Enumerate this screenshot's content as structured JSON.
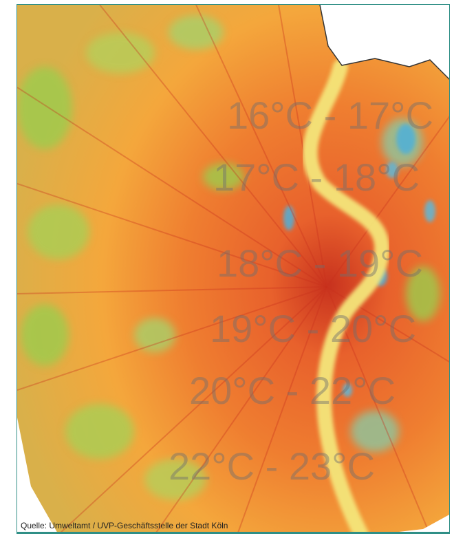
{
  "map": {
    "source": "Quelle: Umweltamt / UVP-Geschäftsstelle der Stadt Köln",
    "zones": [
      {
        "label": "16°C - 17°C"
      },
      {
        "label": "17°C - 18°C"
      },
      {
        "label": "18°C - 19°C"
      },
      {
        "label": "19°C - 20°C"
      },
      {
        "label": "20°C - 22°C"
      },
      {
        "label": "22°C - 23°C"
      }
    ],
    "colors": {
      "cool": "#4fb0d9",
      "mild": "#9ccc4e",
      "warm": "#f4a73c",
      "hot": "#e8612c",
      "hottest": "#c8321e",
      "river": "#f4e57a",
      "border": "#2f8f86"
    }
  }
}
